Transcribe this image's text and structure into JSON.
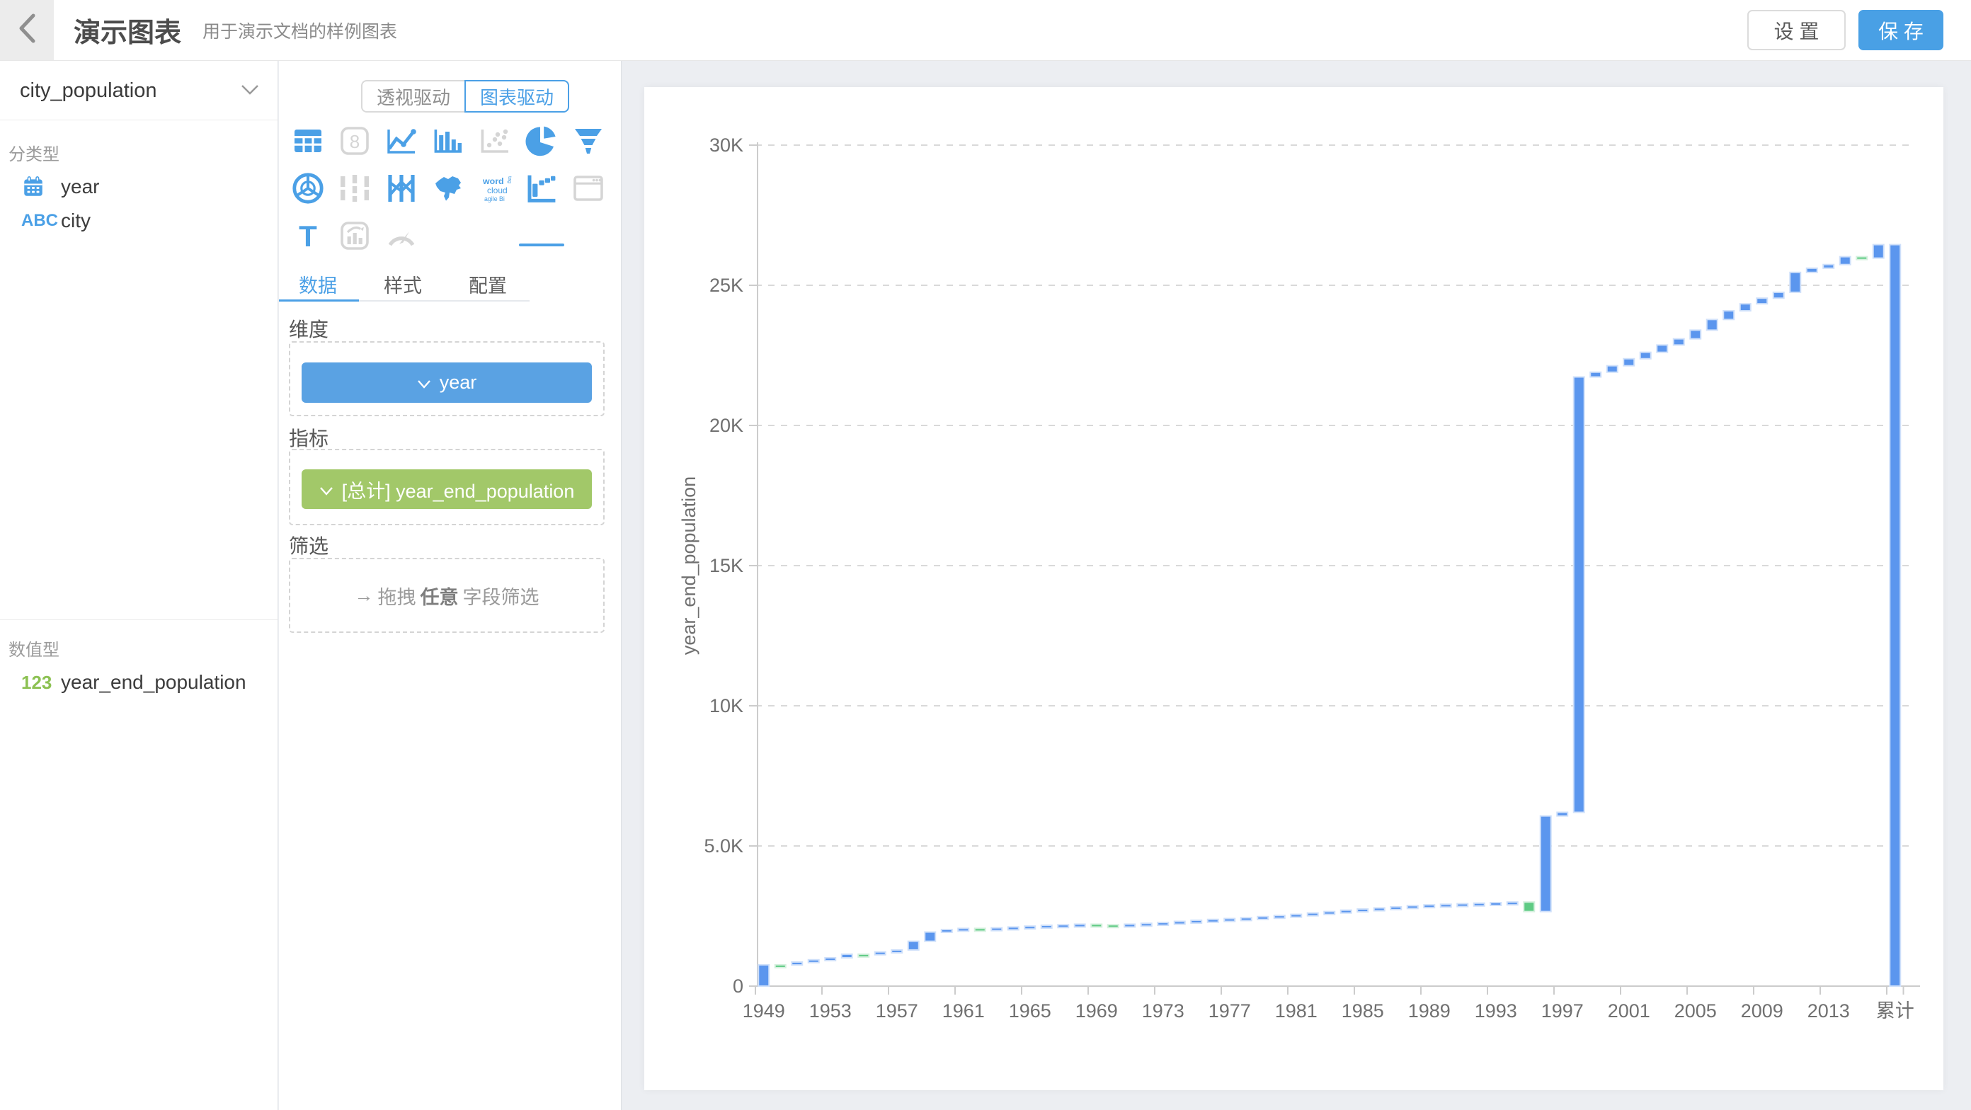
{
  "colors": {
    "primary": "#4BA0E6",
    "save_button": "#49A0E5",
    "dimension_pill": "#5AA2E3",
    "metric_pill": "#A2C869",
    "bar_increase": "#5B96EE",
    "bar_decrease": "#5FCB84",
    "bar_total": "#5B96EE"
  },
  "header": {
    "title": "演示图表",
    "subtitle": "用于演示文档的样例图表",
    "settings_label": "设 置",
    "save_label": "保 存"
  },
  "sidebar": {
    "dataset": "city_population",
    "category_section": "分类型",
    "category_fields": [
      {
        "name": "year",
        "icon": "calendar-icon"
      },
      {
        "name": "city",
        "icon": "abc-icon"
      }
    ],
    "numeric_section": "数值型",
    "numeric_fields": [
      {
        "name": "year_end_population",
        "icon": "123-icon"
      }
    ]
  },
  "panel": {
    "mode_pivot": "透视驱动",
    "mode_chart": "图表驱动",
    "mode_active": "图表驱动",
    "chart_types": [
      {
        "icon": "table",
        "enabled": true,
        "selected": false
      },
      {
        "icon": "number",
        "enabled": false,
        "selected": false
      },
      {
        "icon": "line-chart",
        "enabled": true,
        "selected": false
      },
      {
        "icon": "bar-chart",
        "enabled": true,
        "selected": false
      },
      {
        "icon": "scatter",
        "enabled": false,
        "selected": false
      },
      {
        "icon": "pie",
        "enabled": true,
        "selected": false
      },
      {
        "icon": "funnel",
        "enabled": true,
        "selected": false
      },
      {
        "icon": "radar",
        "enabled": true,
        "selected": false
      },
      {
        "icon": "sankey",
        "enabled": false,
        "selected": false
      },
      {
        "icon": "parallel",
        "enabled": true,
        "selected": false
      },
      {
        "icon": "china-map",
        "enabled": true,
        "selected": false
      },
      {
        "icon": "word-cloud",
        "enabled": true,
        "selected": false
      },
      {
        "icon": "waterfall",
        "enabled": true,
        "selected": true
      },
      {
        "icon": "web-frame",
        "enabled": false,
        "selected": false
      },
      {
        "icon": "text",
        "enabled": true,
        "selected": false
      },
      {
        "icon": "combo-card",
        "enabled": false,
        "selected": false
      },
      {
        "icon": "gauge",
        "enabled": false,
        "selected": false
      }
    ],
    "word_cloud_icon_text": [
      "word",
      "cloud",
      "agile Bi",
      "tag"
    ],
    "tabs": [
      "数据",
      "样式",
      "配置"
    ],
    "active_tab": "数据",
    "dimension_label": "维度",
    "dimension_pill": "year",
    "metric_label": "指标",
    "metric_pill": "[总计] year_end_population",
    "filter_label": "筛选",
    "filter_arrow": "→",
    "filter_prefix": "拖拽",
    "filter_bold": "任意",
    "filter_suffix": "字段筛选"
  },
  "chart_data": {
    "type": "bar",
    "subtype": "waterfall",
    "title": "",
    "xlabel": "",
    "ylabel": "year_end_population",
    "ylim": [
      0,
      30000
    ],
    "grid": "dashed-horizontal",
    "legend": "none",
    "y_tick_values": [
      0,
      5000,
      10000,
      15000,
      20000,
      25000,
      30000
    ],
    "y_tick_labels": [
      "0",
      "5.0K",
      "10K",
      "15K",
      "20K",
      "25K",
      "30K"
    ],
    "start_year": 1949,
    "cumulative": [
      760,
      755,
      860,
      940,
      1010,
      1140,
      1120,
      1220,
      1290,
      1600,
      1930,
      2020,
      2060,
      2050,
      2080,
      2110,
      2140,
      2170,
      2190,
      2210,
      2190,
      2180,
      2210,
      2240,
      2270,
      2310,
      2350,
      2380,
      2410,
      2440,
      2480,
      2520,
      2560,
      2610,
      2660,
      2710,
      2750,
      2790,
      2830,
      2870,
      2900,
      2920,
      2940,
      2960,
      2980,
      3000,
      2660,
      6070,
      6200,
      21730,
      21900,
      22130,
      22380,
      22610,
      22870,
      23090,
      23400,
      23780,
      24090,
      24340,
      24540,
      24750,
      25460,
      25610,
      25740,
      26020,
      25970,
      26450
    ],
    "total": {
      "label": "累计",
      "value": 26450
    },
    "x_labels": [
      {
        "i": 0,
        "t": "1949"
      },
      {
        "i": 4,
        "t": "1953"
      },
      {
        "i": 8,
        "t": "1957"
      },
      {
        "i": 12,
        "t": "1961"
      },
      {
        "i": 16,
        "t": "1965"
      },
      {
        "i": 20,
        "t": "1969"
      },
      {
        "i": 24,
        "t": "1973"
      },
      {
        "i": 28,
        "t": "1977"
      },
      {
        "i": 32,
        "t": "1981"
      },
      {
        "i": 36,
        "t": "1985"
      },
      {
        "i": 40,
        "t": "1989"
      },
      {
        "i": 44,
        "t": "1993"
      },
      {
        "i": 48,
        "t": "1997"
      },
      {
        "i": 52,
        "t": "2001"
      },
      {
        "i": 56,
        "t": "2005"
      },
      {
        "i": 60,
        "t": "2009"
      },
      {
        "i": 64,
        "t": "2013"
      },
      {
        "i": 68,
        "t": "累计"
      }
    ]
  }
}
